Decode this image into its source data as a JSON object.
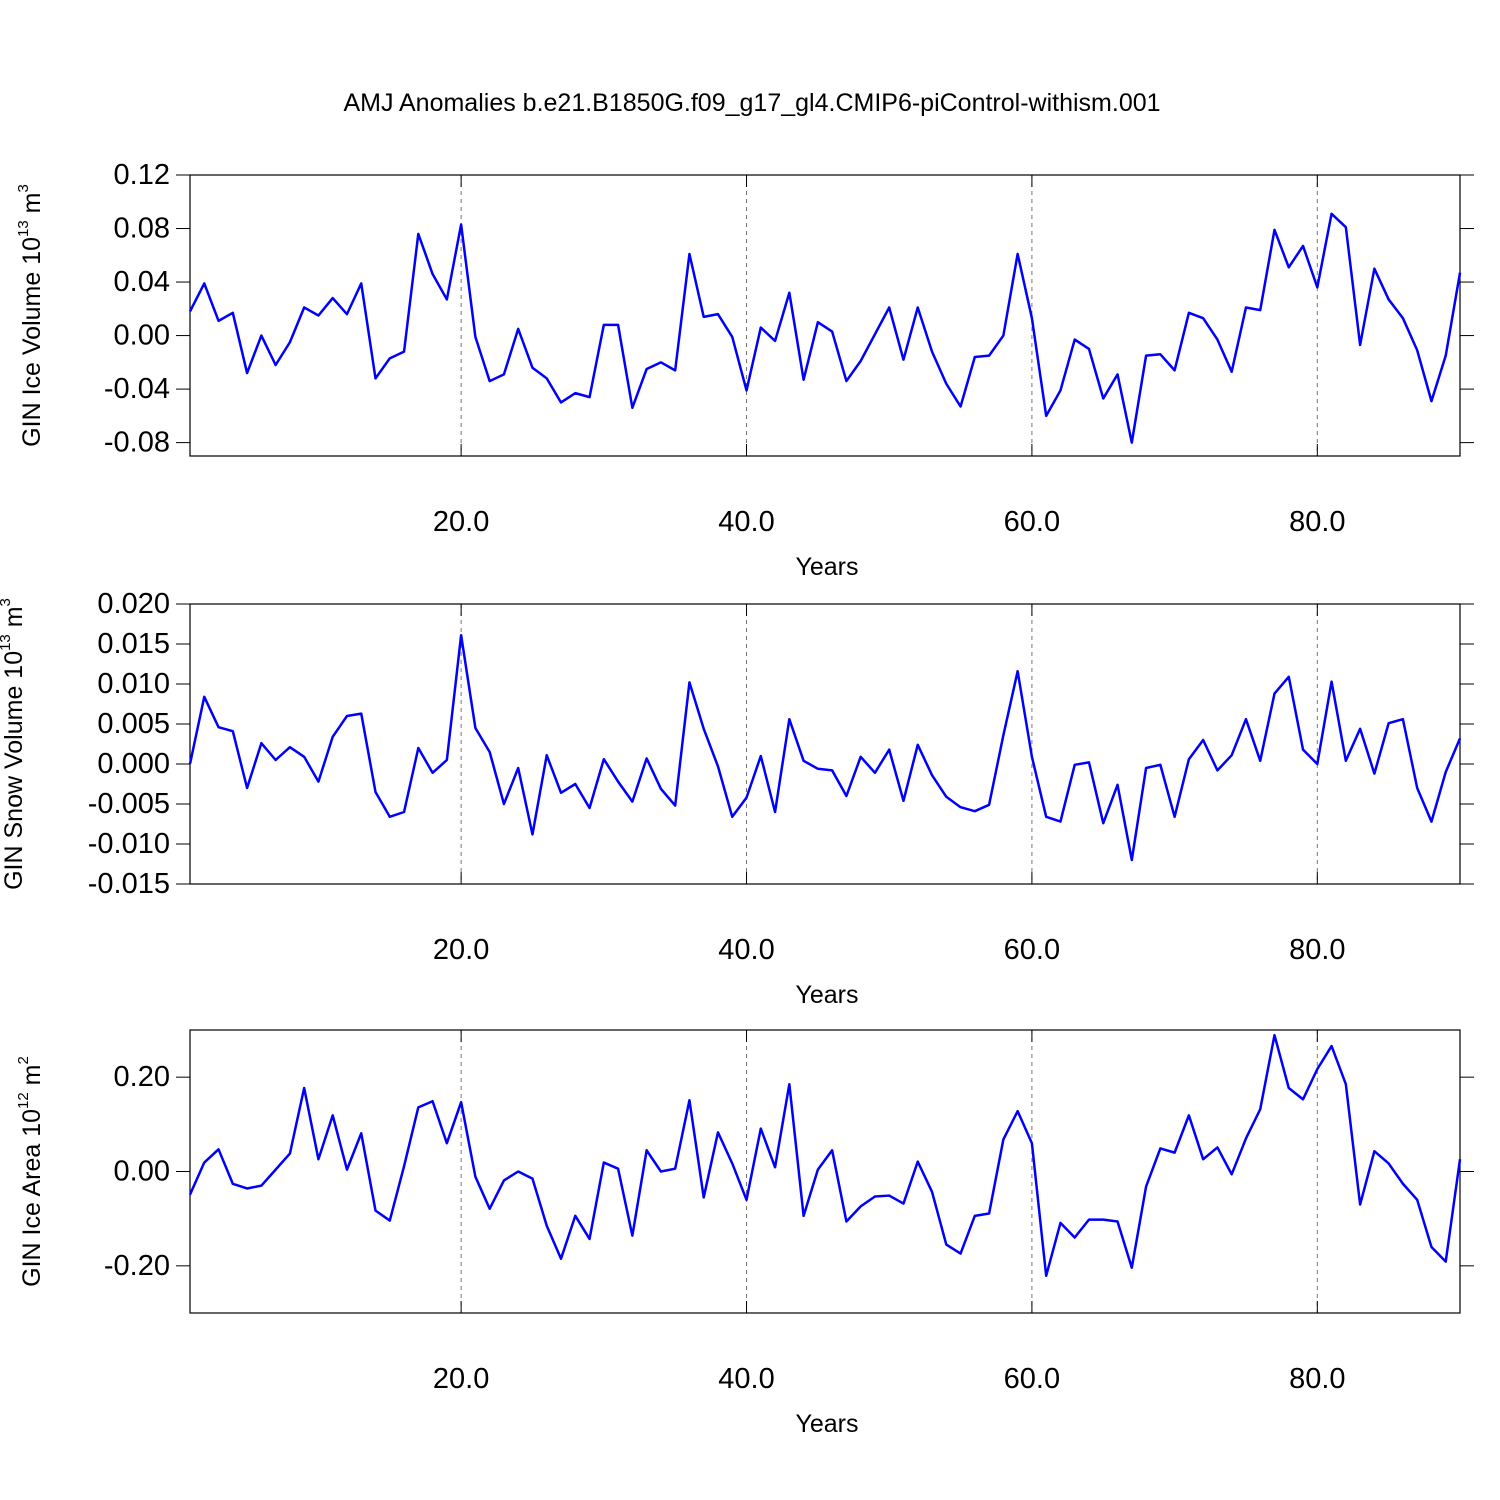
{
  "title": "AMJ Anomalies b.e21.B1850G.f09_g17_gl4.CMIP6-piControl-withism.001",
  "chart_data": [
    {
      "type": "line",
      "ylabel": [
        "GIN Ice Volume 10",
        "13",
        " m",
        "3"
      ],
      "xlabel": "Years",
      "color": "#0000ff",
      "grid": "x",
      "xlim": [
        1,
        90
      ],
      "xticks": [
        {
          "value": 20,
          "label": "20.0"
        },
        {
          "value": 40,
          "label": "40.0"
        },
        {
          "value": 60,
          "label": "60.0"
        },
        {
          "value": 80,
          "label": "80.0"
        }
      ],
      "ylim": [
        -0.09,
        0.12
      ],
      "yticks": [
        -0.08,
        -0.04,
        {
          "value": 0,
          "label": "0.00"
        },
        0.04,
        0.08,
        0.12
      ],
      "x": [
        1,
        2,
        3,
        4,
        5,
        6,
        7,
        8,
        9,
        10,
        11,
        12,
        13,
        14,
        15,
        16,
        17,
        18,
        19,
        20,
        21,
        22,
        23,
        24,
        25,
        26,
        27,
        28,
        29,
        30,
        31,
        32,
        33,
        34,
        35,
        36,
        37,
        38,
        39,
        40,
        41,
        42,
        43,
        44,
        45,
        46,
        47,
        48,
        49,
        50,
        51,
        52,
        53,
        54,
        55,
        56,
        57,
        58,
        59,
        60,
        61,
        62,
        63,
        64,
        65,
        66,
        67,
        68,
        69,
        70,
        71,
        72,
        73,
        74,
        75,
        76,
        77,
        78,
        79,
        80,
        81,
        82,
        83,
        84,
        85,
        86,
        87,
        88,
        89,
        90
      ],
      "values": [
        0.018,
        0.039,
        0.011,
        0.017,
        -0.028,
        0.0,
        -0.022,
        -0.005,
        0.021,
        0.015,
        0.028,
        0.016,
        0.039,
        -0.032,
        -0.017,
        -0.012,
        0.076,
        0.046,
        0.027,
        0.083,
        -0.001,
        -0.034,
        -0.029,
        0.005,
        -0.024,
        -0.032,
        -0.05,
        -0.043,
        -0.046,
        0.008,
        0.008,
        -0.054,
        -0.025,
        -0.02,
        -0.026,
        0.061,
        0.014,
        0.016,
        -0.001,
        -0.041,
        0.006,
        -0.004,
        0.032,
        -0.033,
        0.01,
        0.003,
        -0.034,
        -0.019,
        0.001,
        0.021,
        -0.018,
        0.021,
        -0.012,
        -0.036,
        -0.053,
        -0.016,
        -0.015,
        0.0,
        0.061,
        0.013,
        -0.06,
        -0.041,
        -0.003,
        -0.01,
        -0.047,
        -0.029,
        -0.08,
        -0.015,
        -0.014,
        -0.026,
        0.017,
        0.013,
        -0.003,
        -0.027,
        0.021,
        0.019,
        0.079,
        0.051,
        0.067,
        0.036,
        0.091,
        0.081,
        -0.007,
        0.05,
        0.027,
        0.013,
        -0.011,
        -0.049,
        -0.015,
        0.047
      ]
    },
    {
      "type": "line",
      "ylabel": [
        "GIN Snow Volume 10",
        "13",
        " m",
        "3"
      ],
      "xlabel": "Years",
      "color": "#0000ff",
      "grid": "x",
      "xlim": [
        1,
        90
      ],
      "xticks": [
        {
          "value": 20,
          "label": "20.0"
        },
        {
          "value": 40,
          "label": "40.0"
        },
        {
          "value": 60,
          "label": "60.0"
        },
        {
          "value": 80,
          "label": "80.0"
        }
      ],
      "ylim": [
        -0.015,
        0.02
      ],
      "yticks": [
        -0.015,
        {
          "value": -0.01,
          "label": "-0.010"
        },
        -0.005,
        {
          "value": 0,
          "label": "0.000"
        },
        0.005,
        {
          "value": 0.01,
          "label": "0.010"
        },
        0.015,
        {
          "value": 0.02,
          "label": "0.020"
        }
      ],
      "x": [
        1,
        2,
        3,
        4,
        5,
        6,
        7,
        8,
        9,
        10,
        11,
        12,
        13,
        14,
        15,
        16,
        17,
        18,
        19,
        20,
        21,
        22,
        23,
        24,
        25,
        26,
        27,
        28,
        29,
        30,
        31,
        32,
        33,
        34,
        35,
        36,
        37,
        38,
        39,
        40,
        41,
        42,
        43,
        44,
        45,
        46,
        47,
        48,
        49,
        50,
        51,
        52,
        53,
        54,
        55,
        56,
        57,
        58,
        59,
        60,
        61,
        62,
        63,
        64,
        65,
        66,
        67,
        68,
        69,
        70,
        71,
        72,
        73,
        74,
        75,
        76,
        77,
        78,
        79,
        80,
        81,
        82,
        83,
        84,
        85,
        86,
        87,
        88,
        89,
        90
      ],
      "values": [
        0.0,
        0.0084,
        0.0046,
        0.0041,
        -0.003,
        0.0026,
        0.0005,
        0.0021,
        0.0009,
        -0.0022,
        0.0034,
        0.006,
        0.0063,
        -0.0035,
        -0.0066,
        -0.006,
        0.002,
        -0.0011,
        0.0005,
        0.0161,
        0.0045,
        0.0015,
        -0.005,
        -0.0005,
        -0.0088,
        0.0011,
        -0.0036,
        -0.0025,
        -0.0055,
        0.0006,
        -0.0022,
        -0.0047,
        0.0007,
        -0.0031,
        -0.0052,
        0.0102,
        0.0044,
        -0.0003,
        -0.0066,
        -0.0042,
        0.001,
        -0.006,
        0.0056,
        0.0004,
        -0.0006,
        -0.0008,
        -0.004,
        0.0009,
        -0.0011,
        0.0018,
        -0.0046,
        0.0024,
        -0.0014,
        -0.0041,
        -0.0054,
        -0.0059,
        -0.0051,
        0.0036,
        0.0116,
        0.0009,
        -0.0066,
        -0.0072,
        -0.0001,
        0.0002,
        -0.0074,
        -0.0026,
        -0.012,
        -0.0005,
        -0.0001,
        -0.0066,
        0.0006,
        0.003,
        -0.0008,
        0.0011,
        0.0056,
        0.0004,
        0.0088,
        0.0109,
        0.0018,
        0.0,
        0.0103,
        0.0004,
        0.0044,
        -0.0012,
        0.0051,
        0.0056,
        -0.003,
        -0.0072,
        -0.001,
        0.0032
      ]
    },
    {
      "type": "line",
      "ylabel": [
        "GIN Ice Area 10",
        "12",
        " m",
        "2"
      ],
      "xlabel": "Years",
      "color": "#0000ff",
      "grid": "x",
      "xlim": [
        1,
        90
      ],
      "xticks": [
        {
          "value": 20,
          "label": "20.0"
        },
        {
          "value": 40,
          "label": "40.0"
        },
        {
          "value": 60,
          "label": "60.0"
        },
        {
          "value": 80,
          "label": "80.0"
        }
      ],
      "ylim": [
        -0.3,
        0.3
      ],
      "yticks": [
        {
          "value": -0.2,
          "label": "-0.20"
        },
        {
          "value": 0,
          "label": "0.00"
        },
        {
          "value": 0.2,
          "label": "0.20"
        }
      ],
      "x": [
        1,
        2,
        3,
        4,
        5,
        6,
        7,
        8,
        9,
        10,
        11,
        12,
        13,
        14,
        15,
        16,
        17,
        18,
        19,
        20,
        21,
        22,
        23,
        24,
        25,
        26,
        27,
        28,
        29,
        30,
        31,
        32,
        33,
        34,
        35,
        36,
        37,
        38,
        39,
        40,
        41,
        42,
        43,
        44,
        45,
        46,
        47,
        48,
        49,
        50,
        51,
        52,
        53,
        54,
        55,
        56,
        57,
        58,
        59,
        60,
        61,
        62,
        63,
        64,
        65,
        66,
        67,
        68,
        69,
        70,
        71,
        72,
        73,
        74,
        75,
        76,
        77,
        78,
        79,
        80,
        81,
        82,
        83,
        84,
        85,
        86,
        87,
        88,
        89,
        90
      ],
      "values": [
        -0.049,
        0.019,
        0.047,
        -0.026,
        -0.036,
        -0.03,
        0.004,
        0.038,
        0.177,
        0.026,
        0.119,
        0.004,
        0.081,
        -0.083,
        -0.104,
        0.011,
        0.136,
        0.149,
        0.06,
        0.147,
        -0.011,
        -0.079,
        -0.019,
        0.0,
        -0.015,
        -0.115,
        -0.185,
        -0.094,
        -0.143,
        0.019,
        0.006,
        -0.136,
        0.045,
        0.0,
        0.006,
        0.151,
        -0.055,
        0.083,
        0.017,
        -0.06,
        0.091,
        0.009,
        0.185,
        -0.094,
        0.004,
        0.045,
        -0.106,
        -0.074,
        -0.053,
        -0.051,
        -0.068,
        0.021,
        -0.043,
        -0.155,
        -0.174,
        -0.094,
        -0.089,
        0.068,
        0.128,
        0.06,
        -0.221,
        -0.109,
        -0.14,
        -0.102,
        -0.102,
        -0.106,
        -0.204,
        -0.032,
        0.049,
        0.04,
        0.119,
        0.026,
        0.051,
        -0.006,
        0.07,
        0.132,
        0.289,
        0.177,
        0.153,
        0.217,
        0.266,
        0.185,
        -0.07,
        0.043,
        0.017,
        -0.026,
        -0.06,
        -0.16,
        -0.191,
        0.026
      ]
    }
  ]
}
